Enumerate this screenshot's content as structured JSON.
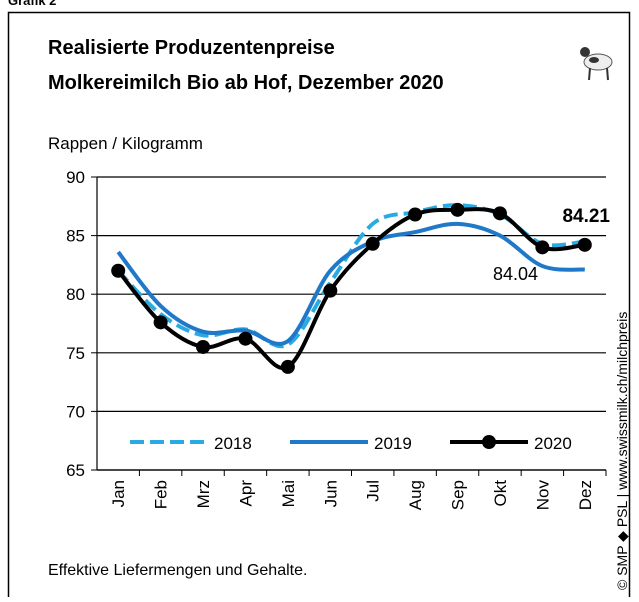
{
  "header": "Grafik 2",
  "chart_data": {
    "type": "line",
    "title": "Realisierte Produzentenpreise",
    "subtitle": "Molkereimilch Bio ab Hof, Dezember 2020",
    "y_label": "Rappen / Kilogramm",
    "categories": [
      "Jan",
      "Feb",
      "Mrz",
      "Apr",
      "Mai",
      "Jun",
      "Jul",
      "Aug",
      "Sep",
      "Okt",
      "Nov",
      "Dez"
    ],
    "series": [
      {
        "name": "2018",
        "color": "#29abe2",
        "dashed": true,
        "markers": false,
        "values": [
          82.0,
          78.3,
          76.5,
          77.0,
          75.7,
          81.0,
          86.0,
          87.0,
          87.6,
          86.8,
          84.3,
          84.5
        ]
      },
      {
        "name": "2019",
        "color": "#1f78c8",
        "dashed": false,
        "markers": false,
        "values": [
          83.6,
          79.0,
          76.8,
          76.9,
          76.0,
          82.0,
          84.5,
          85.3,
          86.0,
          85.0,
          82.4,
          82.1
        ]
      },
      {
        "name": "2020",
        "color": "#000000",
        "dashed": false,
        "markers": true,
        "values": [
          82.0,
          77.6,
          75.5,
          76.2,
          73.8,
          80.3,
          84.3,
          86.8,
          87.2,
          86.9,
          84.0,
          84.21
        ]
      }
    ],
    "annotations": [
      "84.21",
      "84.04"
    ],
    "ylim": [
      65,
      90
    ],
    "yticks": [
      65,
      70,
      75,
      80,
      85,
      90
    ],
    "grid": true,
    "footnote": "Effektive Liefermengen und Gehalte.",
    "source": "© SMP ◆ PSL | www.swissmilk.ch/milchpreis"
  }
}
